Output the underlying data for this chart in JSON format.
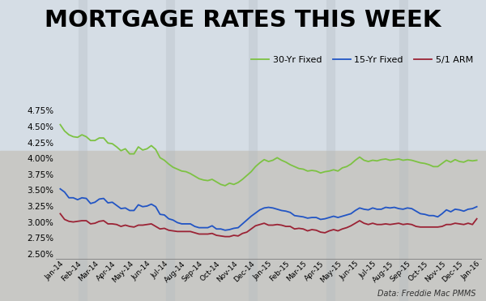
{
  "title": "MORTGAGE RATES THIS WEEK",
  "title_fontsize": 21,
  "title_fontweight": "bold",
  "source_text": "Data: Freddie Mac PMMS",
  "legend_labels": [
    "30-Yr Fixed",
    "15-Yr Fixed",
    "5/1 ARM"
  ],
  "line_colors": [
    "#7dc243",
    "#2255c4",
    "#9b2335"
  ],
  "xtick_labels": [
    "Jan-14",
    "Feb-14",
    "Mar-14",
    "Apr-14",
    "May-14",
    "Jun-14",
    "Jul-14",
    "Aug-14",
    "Sep-14",
    "Oct-14",
    "Nov-14",
    "Dec-14",
    "Jan-15",
    "Feb-15",
    "Mar-15",
    "Apr-15",
    "May-15",
    "Jun-15",
    "Jul-15",
    "Aug-15",
    "Sep-15",
    "Oct-15",
    "Nov-15",
    "Dec-15",
    "Jan-16"
  ],
  "ytick_values": [
    2.5,
    2.75,
    3.0,
    3.25,
    3.5,
    3.75,
    4.0,
    4.25,
    4.5,
    4.75
  ],
  "ylim": [
    2.42,
    4.88
  ],
  "rate_30yr": [
    4.53,
    4.43,
    4.37,
    4.34,
    4.33,
    4.37,
    4.34,
    4.28,
    4.28,
    4.32,
    4.32,
    4.24,
    4.23,
    4.18,
    4.12,
    4.15,
    4.07,
    4.07,
    4.18,
    4.13,
    4.15,
    4.2,
    4.14,
    4.01,
    3.97,
    3.91,
    3.86,
    3.83,
    3.8,
    3.79,
    3.76,
    3.72,
    3.68,
    3.66,
    3.65,
    3.67,
    3.63,
    3.59,
    3.57,
    3.61,
    3.59,
    3.62,
    3.67,
    3.73,
    3.79,
    3.87,
    3.93,
    3.98,
    3.95,
    3.97,
    4.01,
    3.97,
    3.94,
    3.9,
    3.87,
    3.84,
    3.83,
    3.8,
    3.81,
    3.8,
    3.77,
    3.79,
    3.8,
    3.82,
    3.8,
    3.85,
    3.87,
    3.91,
    3.97,
    4.02,
    3.97,
    3.95,
    3.97,
    3.96,
    3.98,
    3.99,
    3.97,
    3.98,
    3.99,
    3.97,
    3.98,
    3.97,
    3.95,
    3.93,
    3.92,
    3.9,
    3.87,
    3.87,
    3.92,
    3.97,
    3.94,
    3.98,
    3.95,
    3.94,
    3.97,
    3.96,
    3.97
  ],
  "rate_15yr": [
    3.52,
    3.47,
    3.38,
    3.38,
    3.35,
    3.38,
    3.37,
    3.29,
    3.31,
    3.36,
    3.37,
    3.3,
    3.31,
    3.26,
    3.21,
    3.22,
    3.18,
    3.18,
    3.27,
    3.24,
    3.25,
    3.28,
    3.24,
    3.12,
    3.11,
    3.05,
    3.03,
    2.99,
    2.97,
    2.97,
    2.97,
    2.93,
    2.91,
    2.91,
    2.91,
    2.94,
    2.89,
    2.89,
    2.87,
    2.88,
    2.9,
    2.91,
    2.97,
    3.03,
    3.09,
    3.14,
    3.19,
    3.22,
    3.23,
    3.22,
    3.2,
    3.18,
    3.17,
    3.15,
    3.1,
    3.09,
    3.08,
    3.06,
    3.07,
    3.07,
    3.04,
    3.05,
    3.07,
    3.09,
    3.07,
    3.09,
    3.11,
    3.13,
    3.18,
    3.22,
    3.2,
    3.19,
    3.22,
    3.2,
    3.2,
    3.23,
    3.22,
    3.23,
    3.21,
    3.2,
    3.22,
    3.21,
    3.17,
    3.13,
    3.12,
    3.1,
    3.1,
    3.08,
    3.13,
    3.19,
    3.16,
    3.2,
    3.19,
    3.17,
    3.2,
    3.21,
    3.24
  ],
  "rate_arm": [
    3.13,
    3.04,
    3.01,
    3.0,
    3.01,
    3.02,
    3.02,
    2.97,
    2.98,
    3.01,
    3.02,
    2.97,
    2.97,
    2.96,
    2.93,
    2.95,
    2.93,
    2.92,
    2.95,
    2.95,
    2.96,
    2.97,
    2.93,
    2.89,
    2.9,
    2.87,
    2.86,
    2.85,
    2.85,
    2.85,
    2.85,
    2.83,
    2.81,
    2.81,
    2.81,
    2.82,
    2.79,
    2.78,
    2.77,
    2.77,
    2.79,
    2.78,
    2.82,
    2.84,
    2.89,
    2.94,
    2.96,
    2.98,
    2.95,
    2.95,
    2.96,
    2.95,
    2.93,
    2.93,
    2.89,
    2.9,
    2.89,
    2.86,
    2.88,
    2.87,
    2.84,
    2.83,
    2.86,
    2.88,
    2.86,
    2.89,
    2.91,
    2.94,
    2.98,
    3.02,
    2.98,
    2.96,
    2.98,
    2.96,
    2.96,
    2.97,
    2.96,
    2.97,
    2.98,
    2.96,
    2.97,
    2.96,
    2.93,
    2.92,
    2.92,
    2.92,
    2.92,
    2.92,
    2.93,
    2.96,
    2.96,
    2.98,
    2.97,
    2.96,
    2.98,
    2.96,
    3.05
  ],
  "bg_color_top": "#c8d5e0",
  "bg_color_bottom": "#c8c8c0"
}
